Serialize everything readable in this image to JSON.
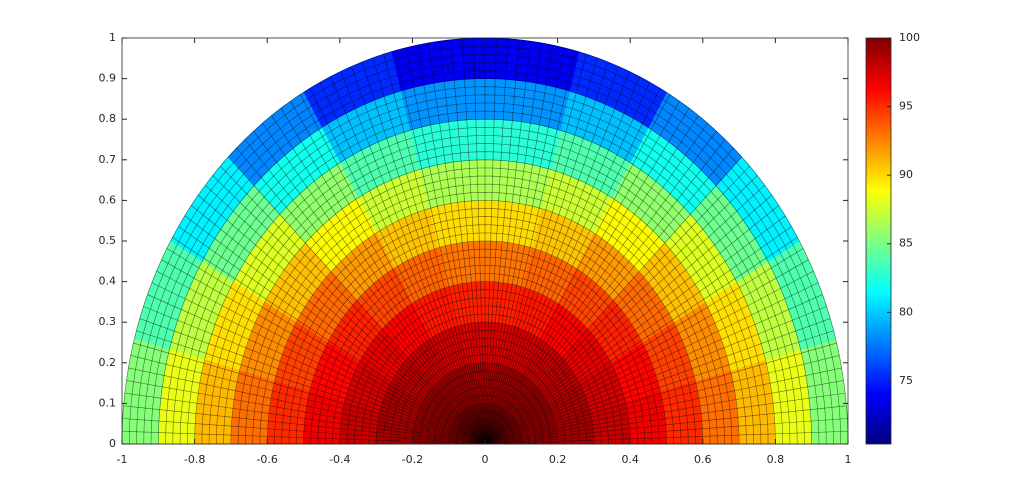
{
  "chart_data": {
    "type": "polar-surface",
    "colormap": "jet",
    "xlim": [
      -1,
      1
    ],
    "ylim": [
      0,
      1
    ],
    "xticks": [
      -1,
      -0.8,
      -0.6,
      -0.4,
      -0.2,
      0,
      0.2,
      0.4,
      0.6,
      0.8,
      1
    ],
    "yticks": [
      0,
      0.1,
      0.2,
      0.3,
      0.4,
      0.5,
      0.6,
      0.7,
      0.8,
      0.9,
      1
    ],
    "clim": [
      70.4,
      100
    ],
    "cticks": [
      75,
      80,
      85,
      90,
      95,
      100
    ],
    "r_edges": [
      0,
      0.1,
      0.2,
      0.3,
      0.4,
      0.5,
      0.6,
      0.7,
      0.8,
      0.9,
      1
    ],
    "theta_edges": [
      0,
      15,
      30,
      45,
      60,
      75,
      90,
      105,
      120,
      135,
      150,
      165,
      180
    ],
    "values": [
      [
        100.0,
        99.9,
        99.9,
        99.9,
        99.8,
        99.8,
        99.8,
        99.8,
        99.9,
        99.9,
        99.9,
        100.0
      ],
      [
        99.6,
        99.5,
        99.4,
        99.2,
        99.0,
        98.9,
        98.9,
        99.0,
        99.2,
        99.4,
        99.5,
        99.6
      ],
      [
        99.0,
        98.8,
        98.4,
        98.0,
        97.6,
        97.4,
        97.4,
        97.6,
        98.0,
        98.4,
        98.8,
        99.0
      ],
      [
        98.0,
        97.6,
        97.0,
        96.3,
        95.7,
        95.4,
        95.4,
        95.7,
        96.3,
        97.0,
        97.6,
        98.0
      ],
      [
        96.7,
        96.2,
        95.3,
        94.3,
        93.4,
        92.9,
        92.9,
        93.4,
        94.3,
        95.3,
        96.2,
        96.7
      ],
      [
        95.1,
        94.4,
        93.2,
        91.8,
        90.6,
        89.9,
        89.9,
        90.6,
        91.8,
        93.2,
        94.4,
        95.1
      ],
      [
        93.1,
        92.2,
        90.7,
        89.0,
        87.4,
        86.5,
        86.5,
        87.4,
        89.0,
        90.7,
        92.2,
        93.1
      ],
      [
        90.9,
        89.8,
        87.9,
        85.7,
        83.8,
        82.7,
        82.7,
        83.8,
        85.7,
        87.9,
        89.8,
        90.9
      ],
      [
        88.3,
        87.0,
        84.7,
        82.0,
        79.7,
        78.4,
        78.4,
        79.7,
        82.0,
        84.7,
        87.0,
        88.3
      ],
      [
        85.4,
        83.8,
        81.1,
        78.0,
        75.3,
        73.7,
        73.7,
        75.3,
        78.0,
        81.1,
        83.8,
        85.4
      ]
    ]
  }
}
